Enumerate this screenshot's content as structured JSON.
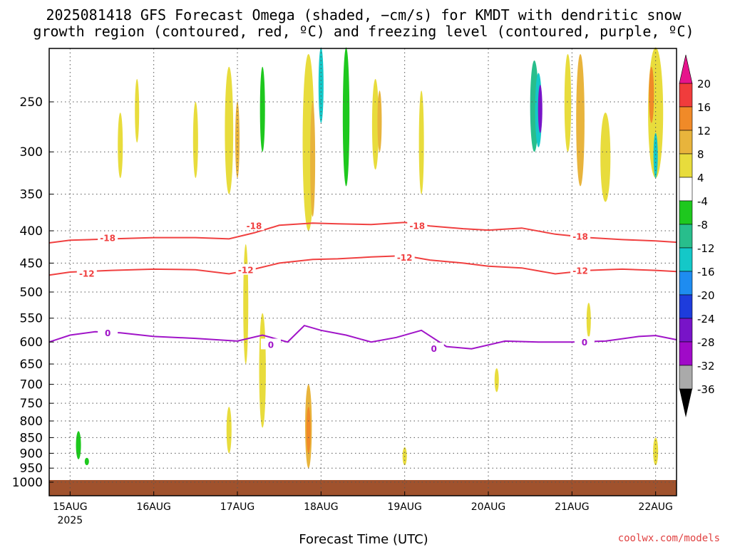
{
  "title_line1": "2025081418 GFS Forecast Omega (shaded, −cm/s) for KMDT with dendritic snow",
  "title_line2": "growth region (contoured, red, ºC) and freezing level (contoured, purple, ºC)",
  "credit": "coolwx.com/models",
  "chart_data": {
    "type": "contour-timeheight",
    "xlabel": "Forecast Time (UTC)",
    "ylabel": "",
    "x_ticks": [
      "15AUG",
      "16AUG",
      "17AUG",
      "18AUG",
      "19AUG",
      "20AUG",
      "21AUG",
      "22AUG"
    ],
    "x_year_label": "2025",
    "x_range_days": [
      14.75,
      22.25
    ],
    "y_ticks": [
      250,
      300,
      350,
      400,
      450,
      500,
      550,
      600,
      650,
      700,
      750,
      800,
      850,
      900,
      950,
      1000
    ],
    "y_range_hpa": [
      200,
      1010
    ],
    "colorbar": {
      "labels": [
        "20",
        "16",
        "12",
        "8",
        "4",
        "-4",
        "-8",
        "-12",
        "-16",
        "-20",
        "-24",
        "-28",
        "-32",
        "-36"
      ],
      "colors": [
        "#f03c3c",
        "#f08a28",
        "#e8b43c",
        "#e8dc3c",
        "#ffffff",
        "#1ec81e",
        "#28be8c",
        "#14c8c8",
        "#1e8cf0",
        "#1e3cdc",
        "#7814c8",
        "#a00ac8",
        "#aaaaaa"
      ],
      "top_arrow_color": "#e6148c",
      "bottom_arrow_color": "#000000"
    },
    "contours": [
      {
        "label": "-18",
        "color": "#f04040",
        "day": [
          14.75,
          15.0,
          15.5,
          16.0,
          16.5,
          16.9,
          17.2,
          17.5,
          17.9,
          18.2,
          18.6,
          19.0,
          19.3,
          19.7,
          20.0,
          20.4,
          20.8,
          21.2,
          21.6,
          22.0,
          22.25
        ],
        "p": [
          418,
          414,
          412,
          410,
          410,
          412,
          403,
          392,
          389,
          390,
          391,
          388,
          393,
          397,
          399,
          396,
          405,
          410,
          413,
          415,
          417
        ],
        "label_positions": [
          [
            15.45,
            410
          ],
          [
            17.2,
            392
          ],
          [
            19.15,
            392
          ],
          [
            21.1,
            408
          ]
        ]
      },
      {
        "label": "-12",
        "color": "#f04040",
        "day": [
          14.75,
          15.0,
          15.5,
          16.0,
          16.5,
          16.9,
          17.2,
          17.5,
          17.9,
          18.2,
          18.6,
          19.0,
          19.3,
          19.7,
          20.0,
          20.4,
          20.8,
          21.2,
          21.6,
          22.0,
          22.25
        ],
        "p": [
          470,
          465,
          462,
          460,
          461,
          468,
          460,
          450,
          444,
          443,
          440,
          438,
          445,
          450,
          455,
          458,
          468,
          462,
          460,
          462,
          464
        ],
        "label_positions": [
          [
            15.2,
            467
          ],
          [
            17.1,
            461
          ],
          [
            19.0,
            440
          ],
          [
            21.1,
            462
          ]
        ]
      },
      {
        "label": "0",
        "color": "#a014c8",
        "day": [
          14.75,
          15.0,
          15.3,
          15.6,
          16.0,
          16.5,
          17.0,
          17.3,
          17.6,
          17.8,
          18.0,
          18.3,
          18.6,
          18.9,
          19.2,
          19.5,
          19.8,
          20.2,
          20.6,
          21.0,
          21.4,
          21.8,
          22.0,
          22.25
        ],
        "p": [
          600,
          585,
          578,
          580,
          588,
          592,
          598,
          585,
          600,
          565,
          575,
          585,
          600,
          590,
          575,
          610,
          615,
          598,
          600,
          600,
          598,
          588,
          586,
          595
        ],
        "label_positions": [
          [
            15.45,
            580
          ],
          [
            17.4,
            605
          ],
          [
            19.35,
            614
          ],
          [
            21.15,
            600
          ]
        ]
      }
    ],
    "ground_hpa": 1000,
    "ground_color": "#a0522d"
  }
}
